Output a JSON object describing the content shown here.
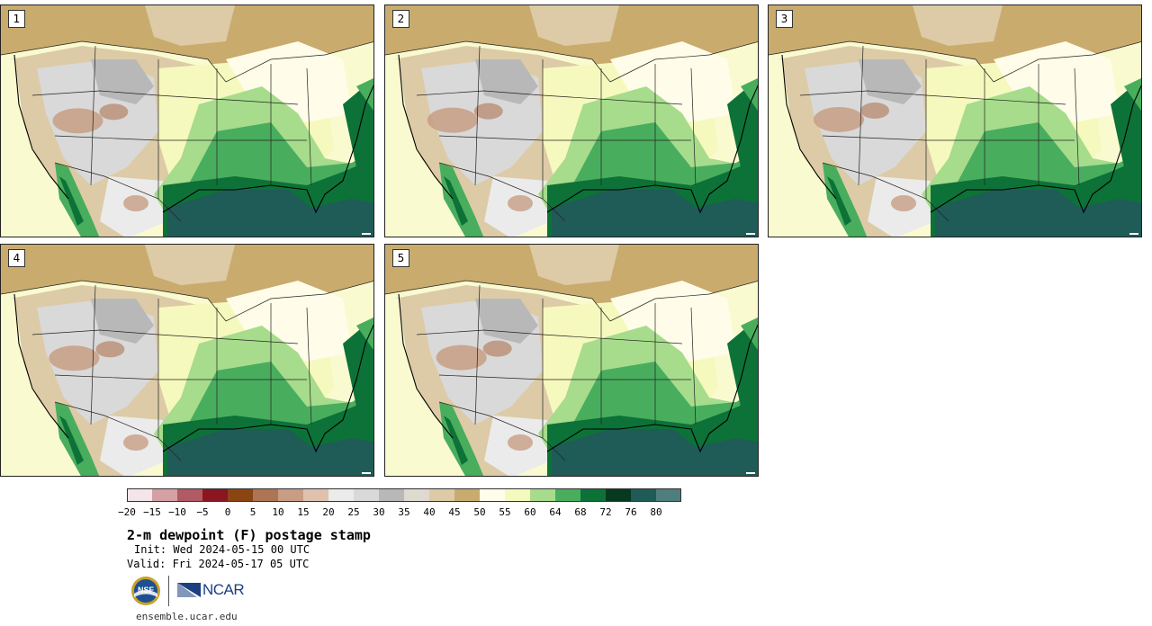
{
  "panels": [
    {
      "label": "1"
    },
    {
      "label": "2"
    },
    {
      "label": "3"
    },
    {
      "label": "4"
    },
    {
      "label": "5"
    }
  ],
  "colorbar": {
    "ticks": [
      "−20",
      "−15",
      "−10",
      "−5",
      "0",
      "5",
      "10",
      "15",
      "20",
      "25",
      "30",
      "35",
      "40",
      "45",
      "50",
      "55",
      "60",
      "64",
      "68",
      "72",
      "76",
      "80"
    ],
    "colors": [
      "#f3e6e8",
      "#d4a0a6",
      "#b05a62",
      "#8b1620",
      "#8a4513",
      "#ad7554",
      "#c79e84",
      "#dfc2ad",
      "#ebebeb",
      "#d9d9d9",
      "#b8b8b8",
      "#dedad0",
      "#dccba6",
      "#c9ab6e",
      "#fffde9",
      "#f6f9bd",
      "#a6dc8c",
      "#49ad5e",
      "#0d7238",
      "#06391f",
      "#1f5b57",
      "#4e7e7d"
    ]
  },
  "title": "2-m dewpoint (F) postage stamp",
  "init": "Init: Wed 2024-05-15 00 UTC",
  "valid": "Valid: Fri 2024-05-17 05 UTC",
  "logos": {
    "nsf_text": "NSF",
    "ncar_text": "NCAR"
  },
  "url": "ensemble.ucar.edu"
}
